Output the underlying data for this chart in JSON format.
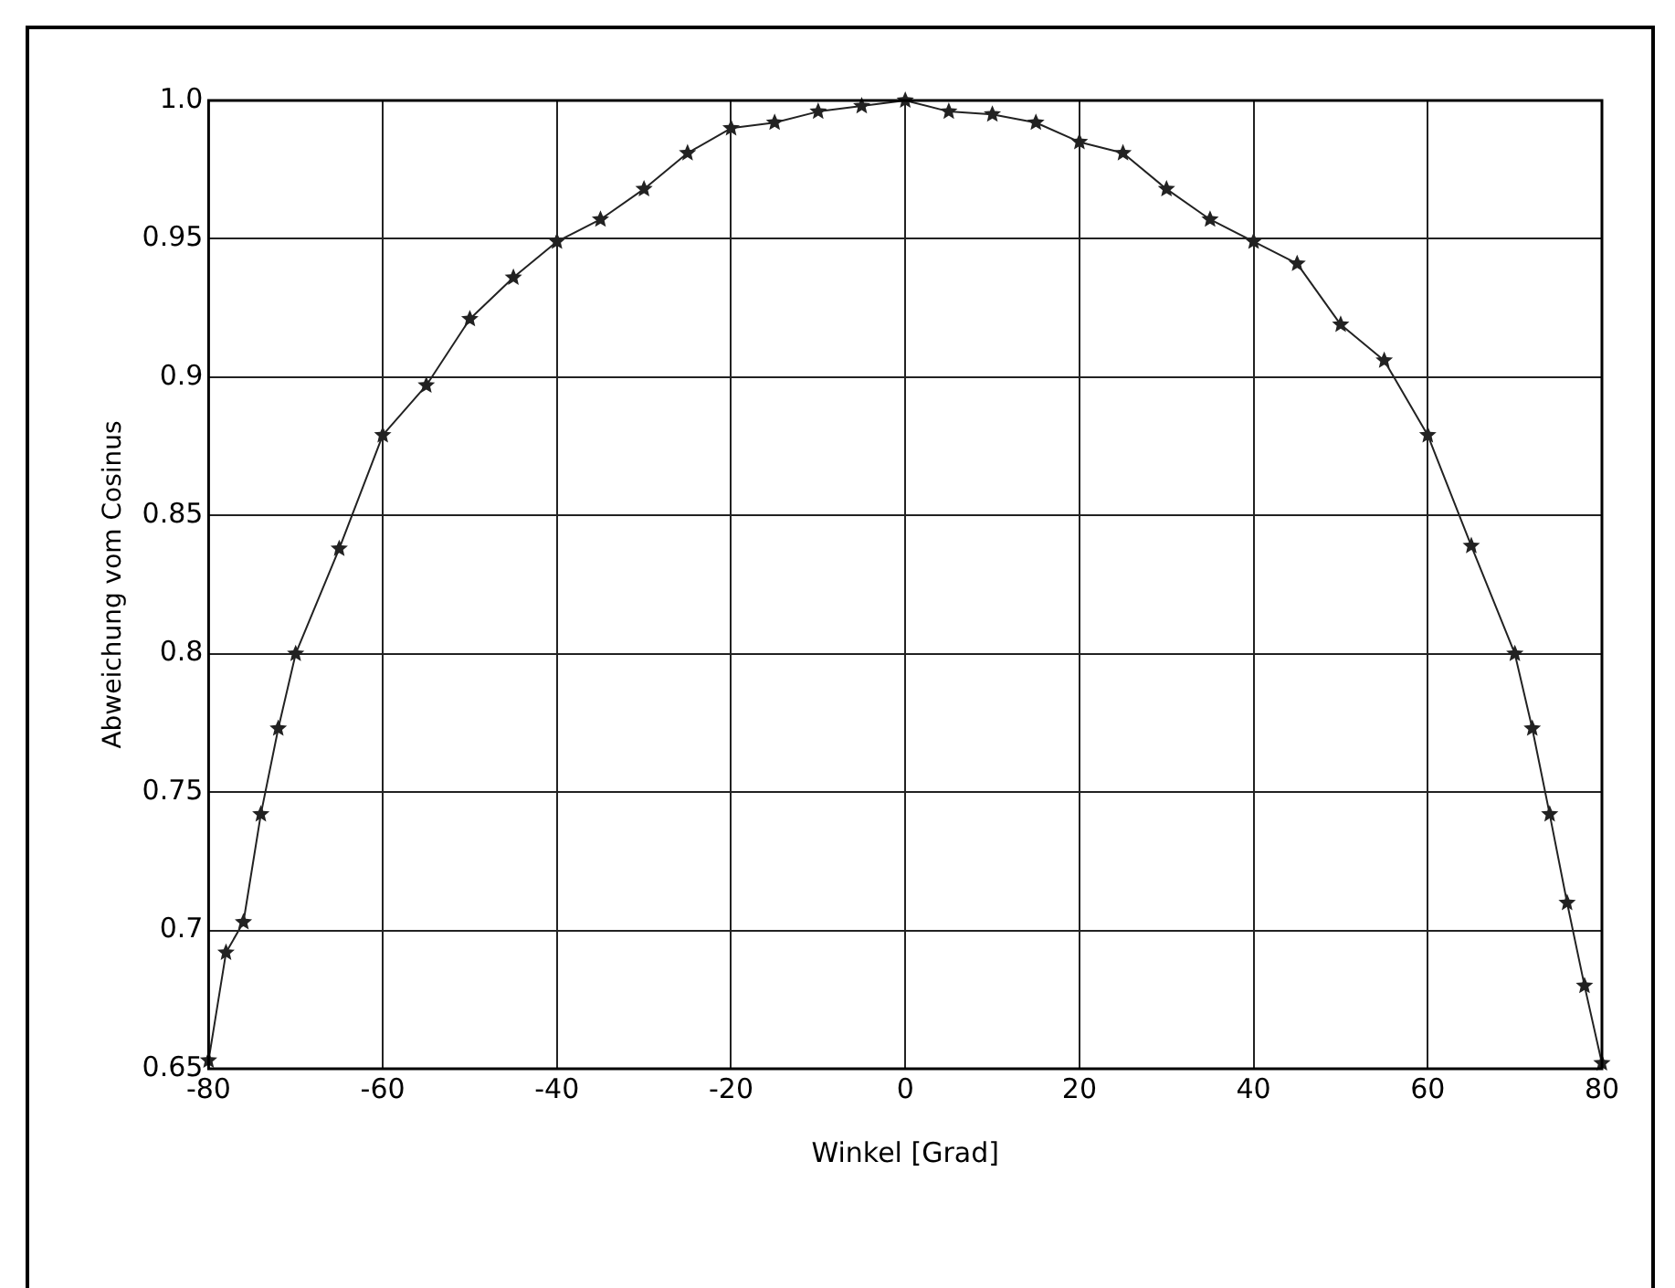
{
  "chart_data": {
    "type": "line",
    "xlabel": "Winkel [Grad]",
    "ylabel": "Abweichung vom Cosinus",
    "x": [
      -80,
      -78,
      -76,
      -74,
      -72,
      -70,
      -65,
      -60,
      -55,
      -50,
      -45,
      -40,
      -35,
      -30,
      -25,
      -20,
      -15,
      -10,
      -5,
      0,
      5,
      10,
      15,
      20,
      25,
      30,
      35,
      40,
      45,
      50,
      55,
      60,
      65,
      70,
      72,
      74,
      76,
      78,
      80
    ],
    "series": [
      {
        "color": "#222222",
        "values": [
          0.653,
          0.692,
          0.703,
          0.742,
          0.773,
          0.8,
          0.838,
          0.879,
          0.897,
          0.921,
          0.936,
          0.949,
          0.957,
          0.968,
          0.981,
          0.99,
          0.992,
          0.996,
          0.998,
          1.0,
          0.996,
          0.995,
          0.992,
          0.985,
          0.981,
          0.968,
          0.957,
          0.949,
          0.941,
          0.919,
          0.906,
          0.879,
          0.839,
          0.8,
          0.773,
          0.742,
          0.71,
          0.68,
          0.652
        ]
      }
    ],
    "xlim": [
      -80,
      80
    ],
    "xticks": [
      -80,
      -60,
      -40,
      -20,
      0,
      20,
      40,
      60,
      80
    ],
    "ylim": [
      0.65,
      1.0
    ],
    "yticks": [
      0.65,
      0.7,
      0.75,
      0.8,
      0.85,
      0.9,
      0.95,
      {
        "value": 1.0,
        "label": "1.0"
      }
    ],
    "grid": true,
    "marker": "star",
    "line_style": "solid"
  }
}
